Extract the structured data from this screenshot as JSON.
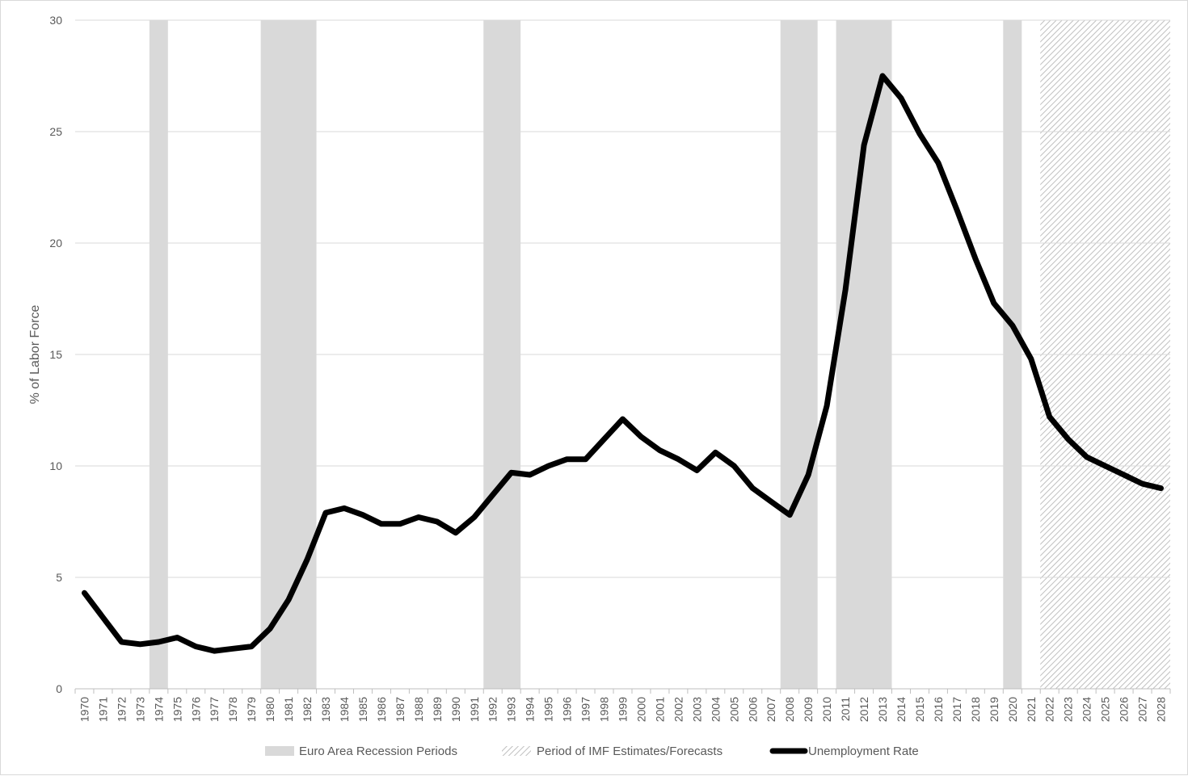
{
  "chart_data": {
    "type": "line",
    "title": "",
    "xlabel": "",
    "ylabel": "% of Labor Force",
    "ylim": [
      0,
      30
    ],
    "yticks": [
      0,
      5,
      10,
      15,
      20,
      25,
      30
    ],
    "grid": "horizontal",
    "legend_position": "bottom",
    "x": [
      "1970",
      "1971",
      "1972",
      "1973",
      "1974",
      "1975",
      "1976",
      "1977",
      "1978",
      "1979",
      "1980",
      "1981",
      "1982",
      "1983",
      "1984",
      "1985",
      "1986",
      "1987",
      "1988",
      "1989",
      "1990",
      "1991",
      "1992",
      "1993",
      "1994",
      "1995",
      "1996",
      "1997",
      "1998",
      "1999",
      "2000",
      "2001",
      "2002",
      "2003",
      "2004",
      "2005",
      "2006",
      "2007",
      "2008",
      "2009",
      "2010",
      "2011",
      "2012",
      "2013",
      "2014",
      "2015",
      "2016",
      "2017",
      "2018",
      "2019",
      "2020",
      "2021",
      "2022",
      "2023",
      "2024",
      "2025",
      "2026",
      "2027",
      "2028"
    ],
    "series": [
      {
        "name": "Unemployment Rate",
        "color": "#000000",
        "values": [
          4.3,
          3.2,
          2.1,
          2.0,
          2.1,
          2.3,
          1.9,
          1.7,
          1.8,
          1.9,
          2.7,
          4.0,
          5.8,
          7.9,
          8.1,
          7.8,
          7.4,
          7.4,
          7.7,
          7.5,
          7.0,
          7.7,
          8.7,
          9.7,
          9.6,
          10.0,
          10.3,
          10.3,
          11.2,
          12.1,
          11.3,
          10.7,
          10.3,
          9.8,
          10.6,
          10.0,
          9.0,
          8.4,
          7.8,
          9.6,
          12.7,
          17.9,
          24.4,
          27.5,
          26.5,
          24.9,
          23.6,
          21.5,
          19.3,
          17.3,
          16.3,
          14.8,
          12.2,
          11.2,
          10.4,
          10.0,
          9.6,
          9.2,
          9.0
        ]
      }
    ],
    "recession_periods": [
      {
        "start": "1974",
        "end": "1974"
      },
      {
        "start": "1980",
        "end": "1982"
      },
      {
        "start": "1992",
        "end": "1993"
      },
      {
        "start": "2008",
        "end": "2009"
      },
      {
        "start": "2011",
        "end": "2013"
      },
      {
        "start": "2020",
        "end": "2020"
      }
    ],
    "forecast_period": {
      "start": "2022",
      "end": "2028"
    },
    "legend": [
      {
        "label": "Euro Area Recession Periods",
        "style": "solid-gray",
        "color": "#d9d9d9"
      },
      {
        "label": "Period of IMF Estimates/Forecasts",
        "style": "hatched-gray",
        "color": "#bfbfbf"
      },
      {
        "label": "Unemployment Rate",
        "style": "line",
        "color": "#000000"
      }
    ]
  }
}
